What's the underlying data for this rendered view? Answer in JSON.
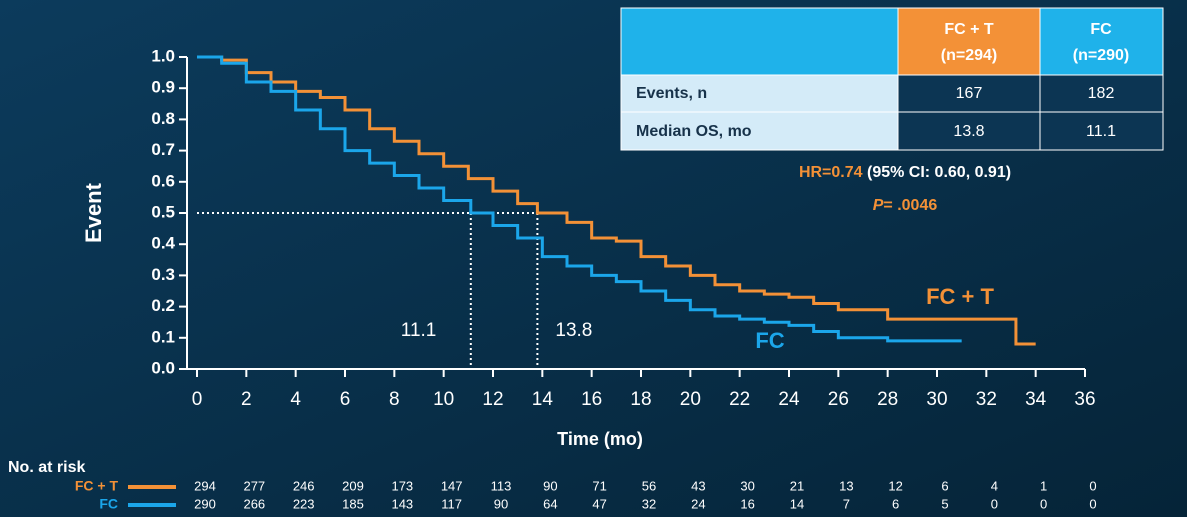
{
  "chart_data": {
    "type": "line",
    "step": true,
    "xlabel": "Time (mo)",
    "ylabel": "Event",
    "xlim": [
      0,
      36
    ],
    "xticks": [
      0,
      2,
      4,
      6,
      8,
      10,
      12,
      14,
      16,
      18,
      20,
      22,
      24,
      26,
      28,
      30,
      32,
      34,
      36
    ],
    "ylim": [
      0,
      1
    ],
    "yticks": [
      {
        "value": 0,
        "label": "0.0"
      },
      0.1,
      0.2,
      0.3,
      0.4,
      0.5,
      0.6,
      0.7,
      0.8,
      0.9,
      {
        "value": 1,
        "label": "1.0"
      }
    ],
    "series": [
      {
        "name": "FC + T",
        "color": "#f39137",
        "x": [
          0,
          1,
          2,
          3,
          4,
          5,
          6,
          7,
          8,
          9,
          10,
          11,
          12,
          13,
          13.8,
          15,
          16,
          17,
          18,
          19,
          20,
          21,
          22,
          23,
          24,
          25,
          26,
          27,
          28,
          29,
          30,
          31,
          32,
          33.2,
          33.2,
          34
        ],
        "values": [
          1.0,
          0.99,
          0.95,
          0.92,
          0.89,
          0.87,
          0.83,
          0.77,
          0.73,
          0.69,
          0.65,
          0.61,
          0.57,
          0.53,
          0.5,
          0.47,
          0.42,
          0.41,
          0.36,
          0.33,
          0.3,
          0.27,
          0.25,
          0.24,
          0.23,
          0.21,
          0.19,
          0.19,
          0.16,
          0.16,
          0.16,
          0.16,
          0.16,
          0.16,
          0.08,
          0.08
        ]
      },
      {
        "name": "FC",
        "color": "#1ba6ea",
        "x": [
          0,
          1,
          2,
          3,
          4,
          5,
          6,
          7,
          8,
          9,
          10,
          11.1,
          12,
          13,
          14,
          15,
          16,
          17,
          18,
          19,
          20,
          21,
          22,
          23,
          24,
          25,
          26,
          27,
          28,
          29,
          30,
          31
        ],
        "values": [
          1.0,
          0.98,
          0.92,
          0.89,
          0.83,
          0.77,
          0.7,
          0.66,
          0.62,
          0.58,
          0.54,
          0.5,
          0.46,
          0.42,
          0.36,
          0.33,
          0.3,
          0.28,
          0.25,
          0.22,
          0.19,
          0.17,
          0.16,
          0.15,
          0.14,
          0.12,
          0.1,
          0.1,
          0.09,
          0.09,
          0.09,
          0.09
        ]
      }
    ],
    "median_y": 0.5,
    "medians": [
      11.1,
      13.8
    ],
    "table": {
      "header": [
        "FC + T",
        "(n=294)",
        "FC",
        "(n=290)"
      ],
      "rows": [
        [
          "Events, n",
          "167",
          "182"
        ],
        [
          "Median OS, mo",
          "13.8",
          "11.1"
        ]
      ]
    },
    "hr": "HR=0.74",
    "ci": "(95% CI: 0.60, 0.91)",
    "p_label": "P",
    "p_value": "= .0046",
    "risk_title": "No. at risk",
    "risk": [
      [
        294,
        277,
        246,
        209,
        173,
        147,
        113,
        90,
        71,
        56,
        43,
        30,
        21,
        13,
        12,
        6,
        4,
        1,
        0
      ],
      [
        290,
        266,
        223,
        185,
        143,
        117,
        90,
        64,
        47,
        32,
        24,
        16,
        14,
        7,
        6,
        5,
        0,
        0,
        0
      ]
    ]
  }
}
